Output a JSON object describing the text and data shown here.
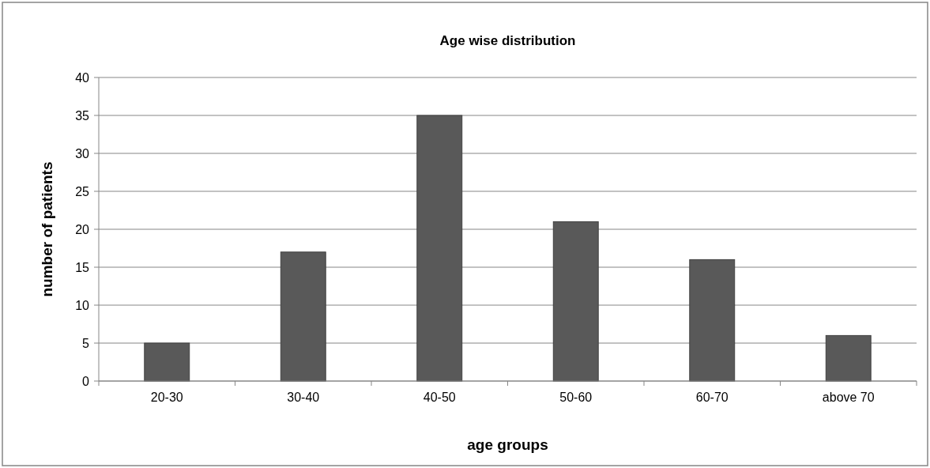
{
  "chart_data": {
    "type": "bar",
    "title": "Age wise distribution",
    "xlabel": "age groups",
    "ylabel": "number of patients",
    "categories": [
      "20-30",
      "30-40",
      "40-50",
      "50-60",
      "60-70",
      "above 70"
    ],
    "values": [
      5,
      17,
      35,
      21,
      16,
      6
    ],
    "color": "#595959",
    "ylim": [
      0,
      40
    ],
    "yticks": [
      0,
      5,
      10,
      15,
      20,
      25,
      30,
      35,
      40
    ],
    "grid": "y"
  }
}
